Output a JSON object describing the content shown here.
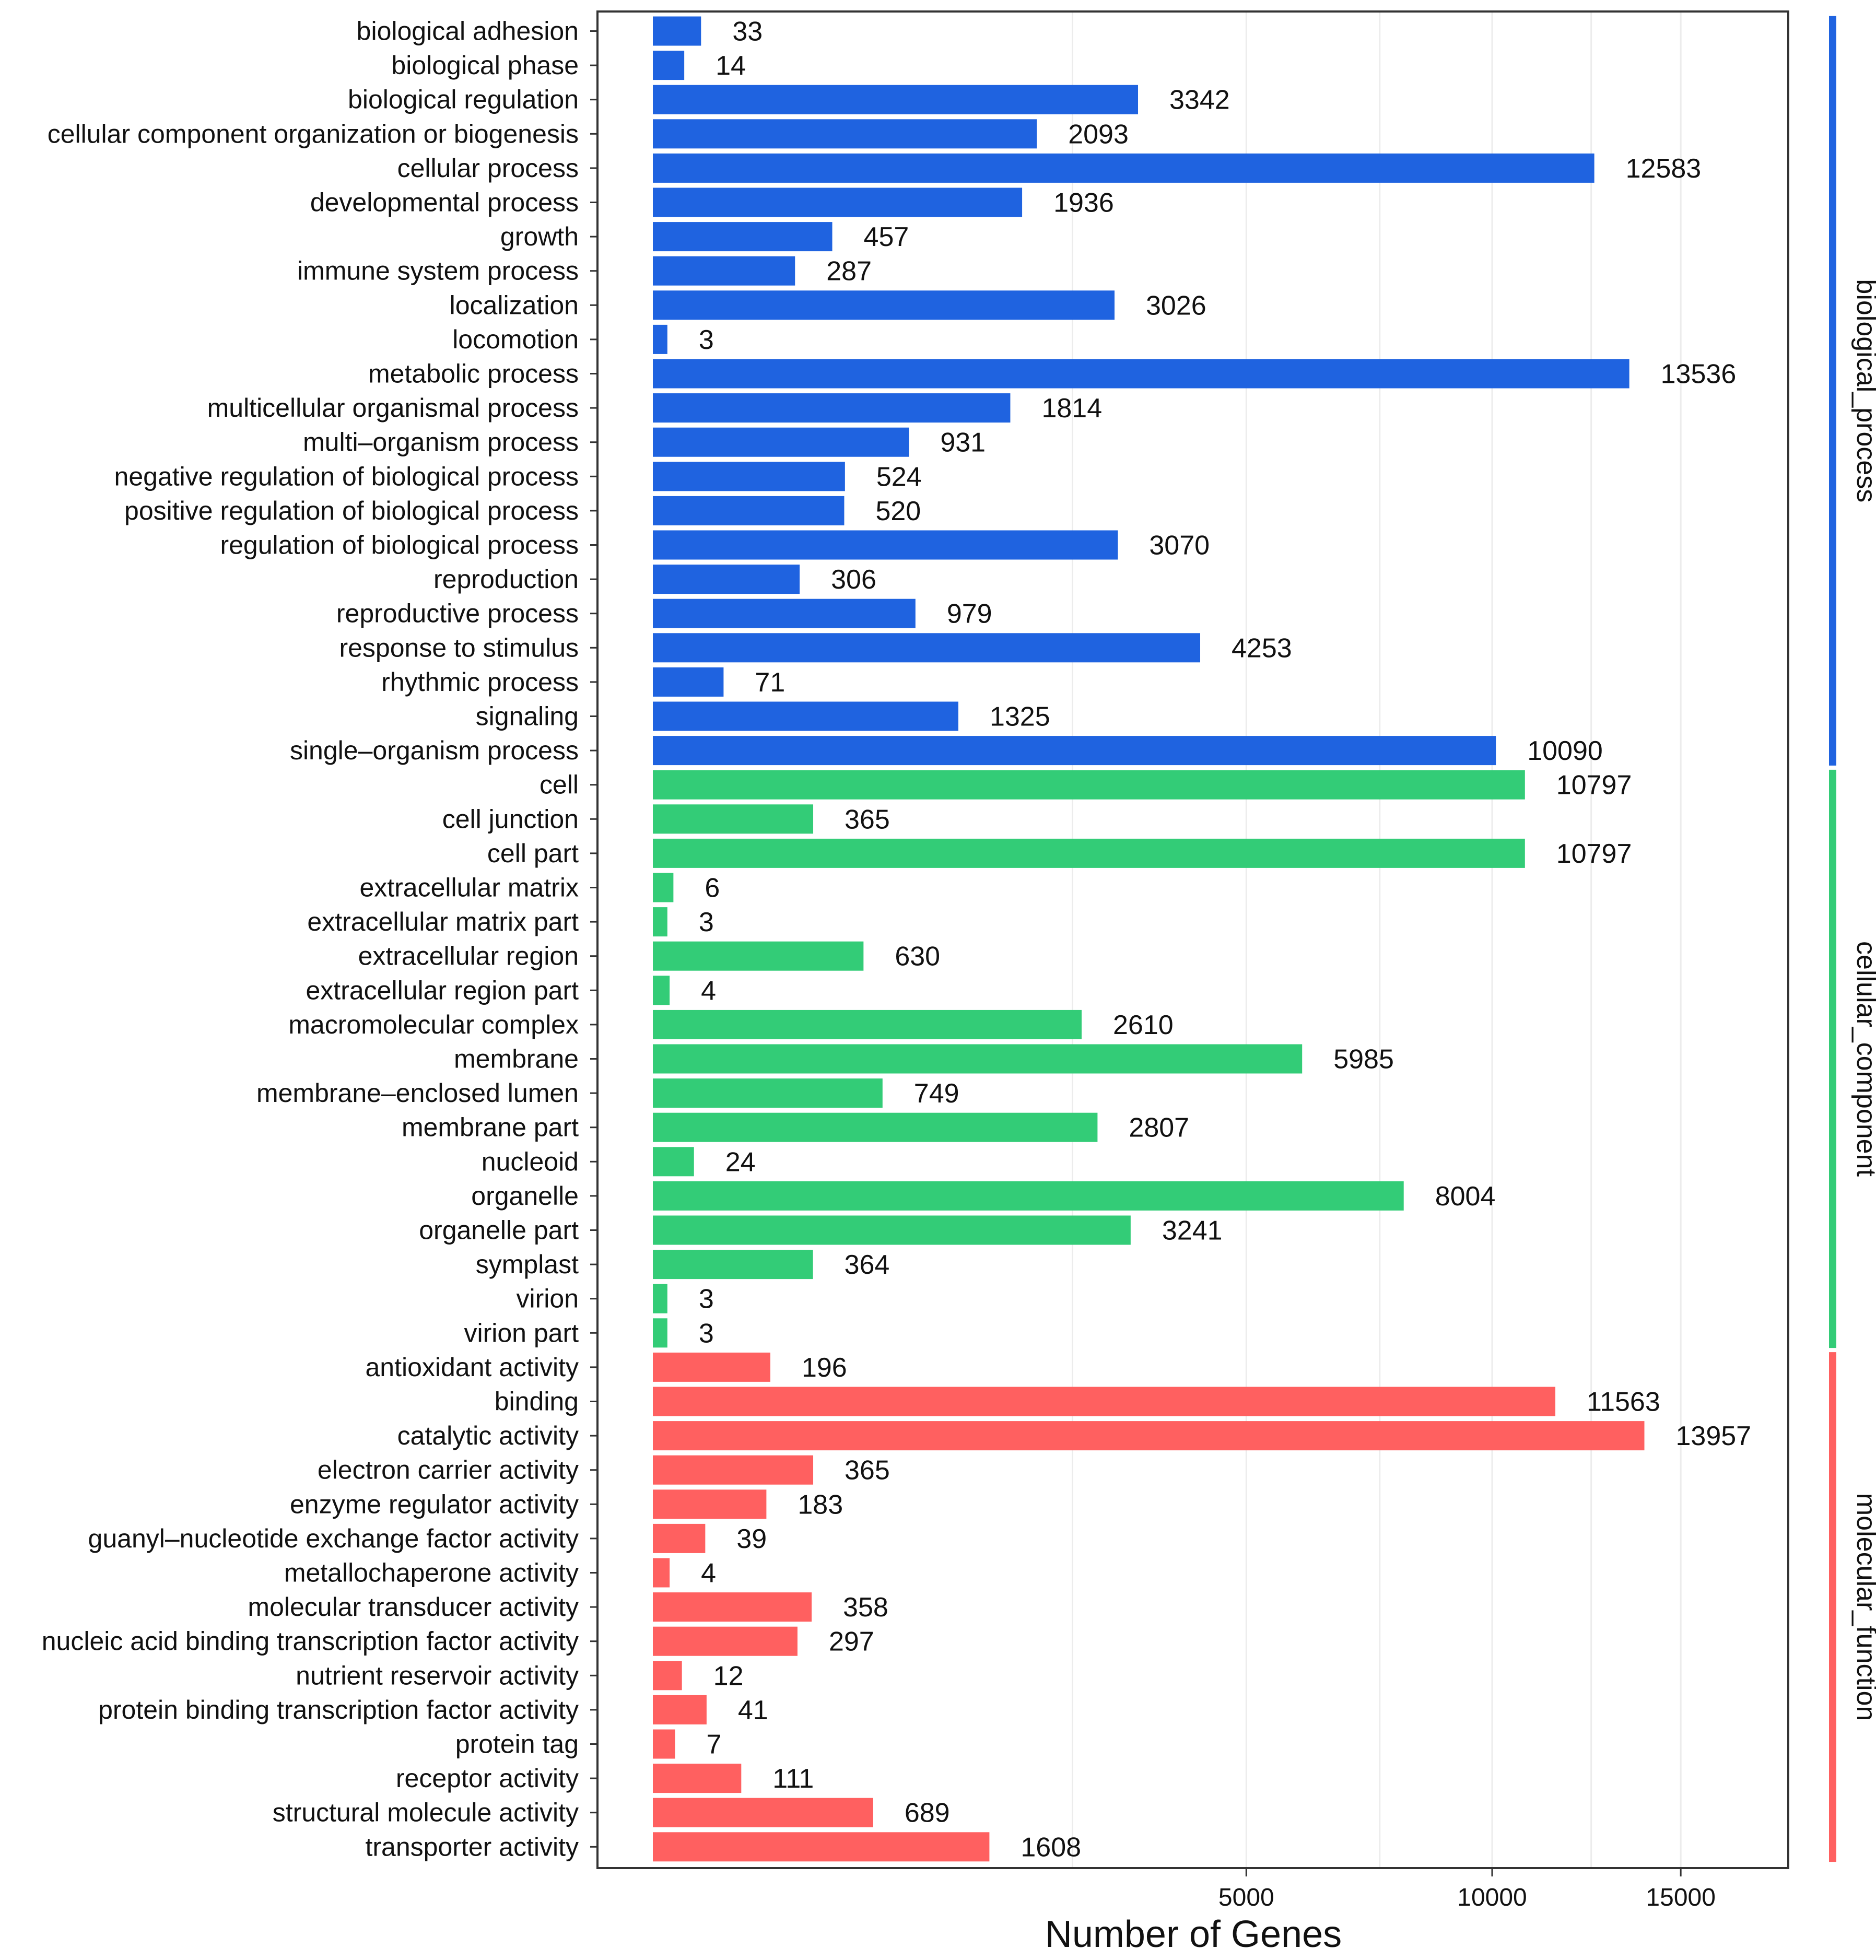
{
  "chart_data": {
    "type": "bar",
    "orientation": "horizontal",
    "xlabel": "Number of Genes",
    "x_ticks": [
      "5000",
      "10000",
      "15000"
    ],
    "x_scale": "square-root",
    "grid": true,
    "legend_position": "right",
    "groups": [
      {
        "name": "biological_process",
        "color": "#1f63e0",
        "categories": [
          "biological adhesion",
          "biological phase",
          "biological regulation",
          "cellular component organization or biogenesis",
          "cellular process",
          "developmental process",
          "growth",
          "immune system process",
          "localization",
          "locomotion",
          "metabolic process",
          "multicellular organismal process",
          "multi–organism process",
          "negative regulation of biological process",
          "positive regulation of biological process",
          "regulation of biological process",
          "reproduction",
          "reproductive process",
          "response to stimulus",
          "rhythmic process",
          "signaling",
          "single–organism process"
        ],
        "values": [
          33,
          14,
          3342,
          2093,
          12583,
          1936,
          457,
          287,
          3026,
          3,
          13536,
          1814,
          931,
          524,
          520,
          3070,
          306,
          979,
          4253,
          71,
          1325,
          10090
        ]
      },
      {
        "name": "cellular_component",
        "color": "#33cc77",
        "categories": [
          "cell",
          "cell junction",
          "cell part",
          "extracellular matrix",
          "extracellular matrix part",
          "extracellular region",
          "extracellular region part",
          "macromolecular complex",
          "membrane",
          "membrane–enclosed lumen",
          "membrane part",
          "nucleoid",
          "organelle",
          "organelle part",
          "symplast",
          "virion",
          "virion part"
        ],
        "values": [
          10797,
          365,
          10797,
          6,
          3,
          630,
          4,
          2610,
          5985,
          749,
          2807,
          24,
          8004,
          3241,
          364,
          3,
          3
        ]
      },
      {
        "name": "molecular_function",
        "color": "#ff6060",
        "categories": [
          "antioxidant activity",
          "binding",
          "catalytic activity",
          "electron carrier activity",
          "enzyme regulator activity",
          "guanyl–nucleotide exchange factor activity",
          "metallochaperone activity",
          "molecular transducer activity",
          "nucleic acid binding transcription factor activity",
          "nutrient reservoir activity",
          "protein binding transcription factor activity",
          "protein tag",
          "receptor activity",
          "structural molecule activity",
          "transporter activity"
        ],
        "values": [
          196,
          11563,
          13957,
          365,
          183,
          39,
          4,
          358,
          297,
          12,
          41,
          7,
          111,
          689,
          1608
        ]
      }
    ]
  }
}
